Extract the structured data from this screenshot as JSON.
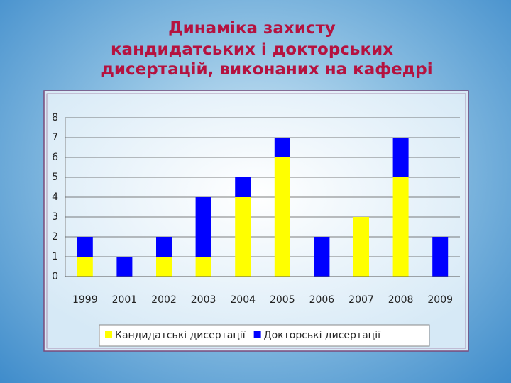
{
  "chart_data": {
    "type": "stacked_bar",
    "title": [
      "Динаміка захисту",
      "кандидатських і докторських",
      "дисертацій, виконаних на кафедрі"
    ],
    "categories": [
      "1999",
      "2001",
      "2002",
      "2003",
      "2004",
      "2005",
      "2006",
      "2007",
      "2008",
      "2009"
    ],
    "series": [
      {
        "name": "Кандидатські дисертації",
        "color": "#ffff00",
        "values": [
          1,
          0,
          1,
          1,
          4,
          6,
          0,
          3,
          5,
          0
        ]
      },
      {
        "name": "Докторські дисертації",
        "color": "#0000ff",
        "values": [
          1,
          1,
          1,
          3,
          1,
          1,
          2,
          0,
          2,
          2
        ]
      }
    ],
    "ylim": [
      0,
      8
    ],
    "yticks": [
      0,
      1,
      2,
      3,
      4,
      5,
      6,
      7,
      8
    ],
    "grid": true,
    "legend": "bottom"
  }
}
